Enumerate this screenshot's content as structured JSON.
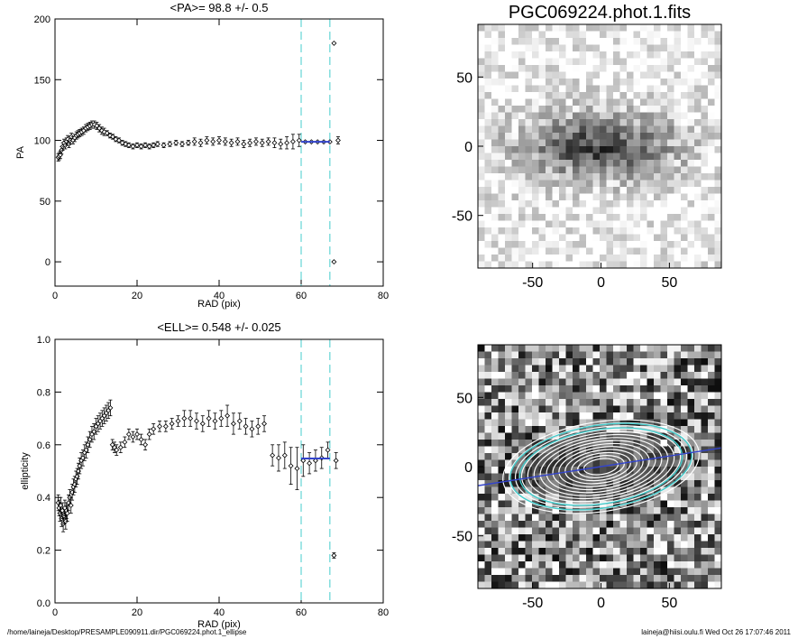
{
  "footer": {
    "path": "/home/laineja/Desktop/PRESAMPLE090911.dir/PGC069224.phot.1_ellipse",
    "stamp": "laineja@hiisi.oulu.fi  Wed Oct 26 17:07:46 2011"
  },
  "colors": {
    "fit": "#3344cc",
    "guide": "#44cccc",
    "marker": "#000000"
  },
  "chart_data": [
    {
      "type": "scatter",
      "title": "<PA>=  98.8 +/-   0.5",
      "xlabel": "RAD (pix)",
      "ylabel": "PA",
      "xlim": [
        0,
        80
      ],
      "ylim": [
        -20,
        200
      ],
      "xticks": [
        0,
        20,
        40,
        60,
        80
      ],
      "yticks": [
        0,
        50,
        100,
        150,
        200
      ],
      "grid": false,
      "vlines": [
        60,
        67
      ],
      "fit_segment": {
        "x": [
          60,
          67
        ],
        "y": 98.8
      },
      "x": [
        0.8,
        1.0,
        1.3,
        1.6,
        1.9,
        2.2,
        2.5,
        2.8,
        3.1,
        3.4,
        3.7,
        4.0,
        4.4,
        4.8,
        5.2,
        5.6,
        6.0,
        6.5,
        7.0,
        7.5,
        8.0,
        8.5,
        9.0,
        9.6,
        10.2,
        10.8,
        11.4,
        12.0,
        12.7,
        13.4,
        14.1,
        14.8,
        15.6,
        16.4,
        17.2,
        18.0,
        19.0,
        20.0,
        21.0,
        22.0,
        23.0,
        24.0,
        25.0,
        26.5,
        28.0,
        29.5,
        31.0,
        32.5,
        34.0,
        35.5,
        37.0,
        38.5,
        40.0,
        41.5,
        43.0,
        44.5,
        46.0,
        47.5,
        49.0,
        50.5,
        52.0,
        53.5,
        55.0,
        56.5,
        58.0,
        59.5,
        61.0,
        62.5,
        64.0,
        65.5,
        67.0,
        68.0,
        68.0,
        69.0
      ],
      "y": [
        86,
        87,
        88,
        92,
        95,
        98,
        96,
        99,
        101,
        97,
        100,
        103,
        100,
        102,
        104,
        105,
        106,
        107,
        108,
        110,
        111,
        112,
        113,
        113,
        112,
        110,
        108,
        107,
        106,
        104,
        103,
        101,
        100,
        98,
        97,
        96,
        95,
        96,
        95,
        96,
        95,
        96,
        97,
        96,
        97,
        98,
        97,
        98,
        99,
        98,
        100,
        99,
        100,
        99,
        98,
        99,
        97,
        98,
        99,
        98,
        99,
        98,
        97,
        98,
        99,
        100,
        98.8,
        98.8,
        98.8,
        98.8,
        98.8,
        180,
        0,
        100
      ],
      "err": [
        3,
        3,
        3,
        3,
        3,
        3,
        3,
        3,
        3,
        3,
        3,
        3,
        3,
        3,
        3,
        3,
        3,
        3,
        3,
        3,
        3,
        3,
        3,
        3,
        3,
        3,
        3,
        3,
        2,
        2,
        2,
        2,
        2,
        2,
        2,
        2,
        2,
        2,
        2,
        2,
        2,
        2,
        2,
        2,
        2,
        2,
        2,
        2,
        3,
        3,
        3,
        3,
        3,
        3,
        3,
        3,
        3,
        3,
        3,
        3,
        3,
        4,
        4,
        5,
        6,
        5,
        0,
        0,
        0,
        0,
        0,
        0,
        0,
        3
      ]
    },
    {
      "type": "scatter",
      "title": "<ELL>= 0.548 +/-  0.025",
      "xlabel": "RAD (pix)",
      "ylabel": "ellipticity",
      "xlim": [
        0,
        80
      ],
      "ylim": [
        0,
        1.0
      ],
      "xticks": [
        0,
        20,
        40,
        60,
        80
      ],
      "yticks": [
        0.0,
        0.2,
        0.4,
        0.6,
        0.8,
        1.0
      ],
      "grid": false,
      "vlines": [
        60,
        67
      ],
      "fit_segment": {
        "x": [
          60,
          67
        ],
        "y": 0.548
      },
      "x": [
        0.8,
        1.0,
        1.2,
        1.4,
        1.6,
        1.8,
        2.0,
        2.2,
        2.4,
        2.6,
        2.8,
        3.0,
        3.3,
        3.6,
        3.9,
        4.2,
        4.5,
        4.8,
        5.1,
        5.4,
        5.7,
        6.0,
        6.4,
        6.8,
        7.2,
        7.6,
        8.0,
        8.5,
        9.0,
        9.5,
        10.0,
        10.5,
        11.0,
        11.5,
        12.0,
        12.5,
        13.0,
        13.5,
        14.0,
        14.5,
        15.0,
        16.0,
        17.0,
        18.0,
        19.0,
        20.0,
        21.0,
        22.0,
        23.0,
        24.0,
        25.5,
        27.0,
        28.5,
        30.0,
        31.5,
        33.0,
        34.5,
        36.0,
        37.5,
        39.0,
        40.5,
        42.0,
        43.5,
        45.0,
        46.5,
        48.0,
        49.5,
        51.0,
        53.0,
        54.5,
        56.0,
        57.5,
        59.0,
        60.5,
        62.0,
        63.5,
        65.0,
        66.5,
        68.0,
        68.5
      ],
      "y": [
        0.38,
        0.36,
        0.34,
        0.37,
        0.32,
        0.35,
        0.3,
        0.33,
        0.36,
        0.31,
        0.35,
        0.34,
        0.38,
        0.4,
        0.37,
        0.42,
        0.44,
        0.45,
        0.47,
        0.48,
        0.5,
        0.52,
        0.54,
        0.55,
        0.57,
        0.58,
        0.6,
        0.62,
        0.64,
        0.65,
        0.67,
        0.68,
        0.69,
        0.7,
        0.71,
        0.72,
        0.73,
        0.74,
        0.6,
        0.59,
        0.58,
        0.59,
        0.61,
        0.64,
        0.63,
        0.64,
        0.62,
        0.6,
        0.64,
        0.66,
        0.67,
        0.67,
        0.68,
        0.69,
        0.7,
        0.7,
        0.69,
        0.68,
        0.7,
        0.69,
        0.7,
        0.71,
        0.68,
        0.69,
        0.67,
        0.66,
        0.67,
        0.68,
        0.56,
        0.55,
        0.56,
        0.52,
        0.51,
        0.54,
        0.53,
        0.54,
        0.55,
        0.58,
        0.18,
        0.54
      ],
      "err": [
        0.03,
        0.03,
        0.03,
        0.03,
        0.03,
        0.03,
        0.03,
        0.03,
        0.03,
        0.03,
        0.03,
        0.03,
        0.03,
        0.03,
        0.03,
        0.03,
        0.03,
        0.03,
        0.03,
        0.03,
        0.03,
        0.03,
        0.03,
        0.03,
        0.03,
        0.03,
        0.03,
        0.03,
        0.03,
        0.03,
        0.03,
        0.03,
        0.03,
        0.03,
        0.03,
        0.03,
        0.03,
        0.03,
        0.02,
        0.02,
        0.02,
        0.02,
        0.02,
        0.02,
        0.02,
        0.02,
        0.02,
        0.02,
        0.02,
        0.02,
        0.02,
        0.02,
        0.02,
        0.02,
        0.03,
        0.03,
        0.03,
        0.03,
        0.03,
        0.03,
        0.03,
        0.04,
        0.04,
        0.03,
        0.03,
        0.03,
        0.03,
        0.03,
        0.04,
        0.05,
        0.05,
        0.07,
        0.08,
        0.06,
        0.04,
        0.04,
        0.04,
        0.03,
        0.01,
        0.03
      ]
    },
    {
      "type": "heatmap",
      "title": "PGC069224.phot.1.fits",
      "xlim": [
        -90,
        88
      ],
      "ylim": [
        -88,
        88
      ],
      "xticks": [
        -50,
        0,
        50
      ],
      "yticks": [
        -50,
        0,
        50
      ]
    },
    {
      "type": "heatmap",
      "title": "",
      "xlim": [
        -90,
        88
      ],
      "ylim": [
        -88,
        88
      ],
      "xticks": [
        -50,
        0,
        50
      ],
      "yticks": [
        -50,
        0,
        50
      ],
      "isophote_pa": 98.8,
      "isophote_ell": 0.548
    }
  ]
}
